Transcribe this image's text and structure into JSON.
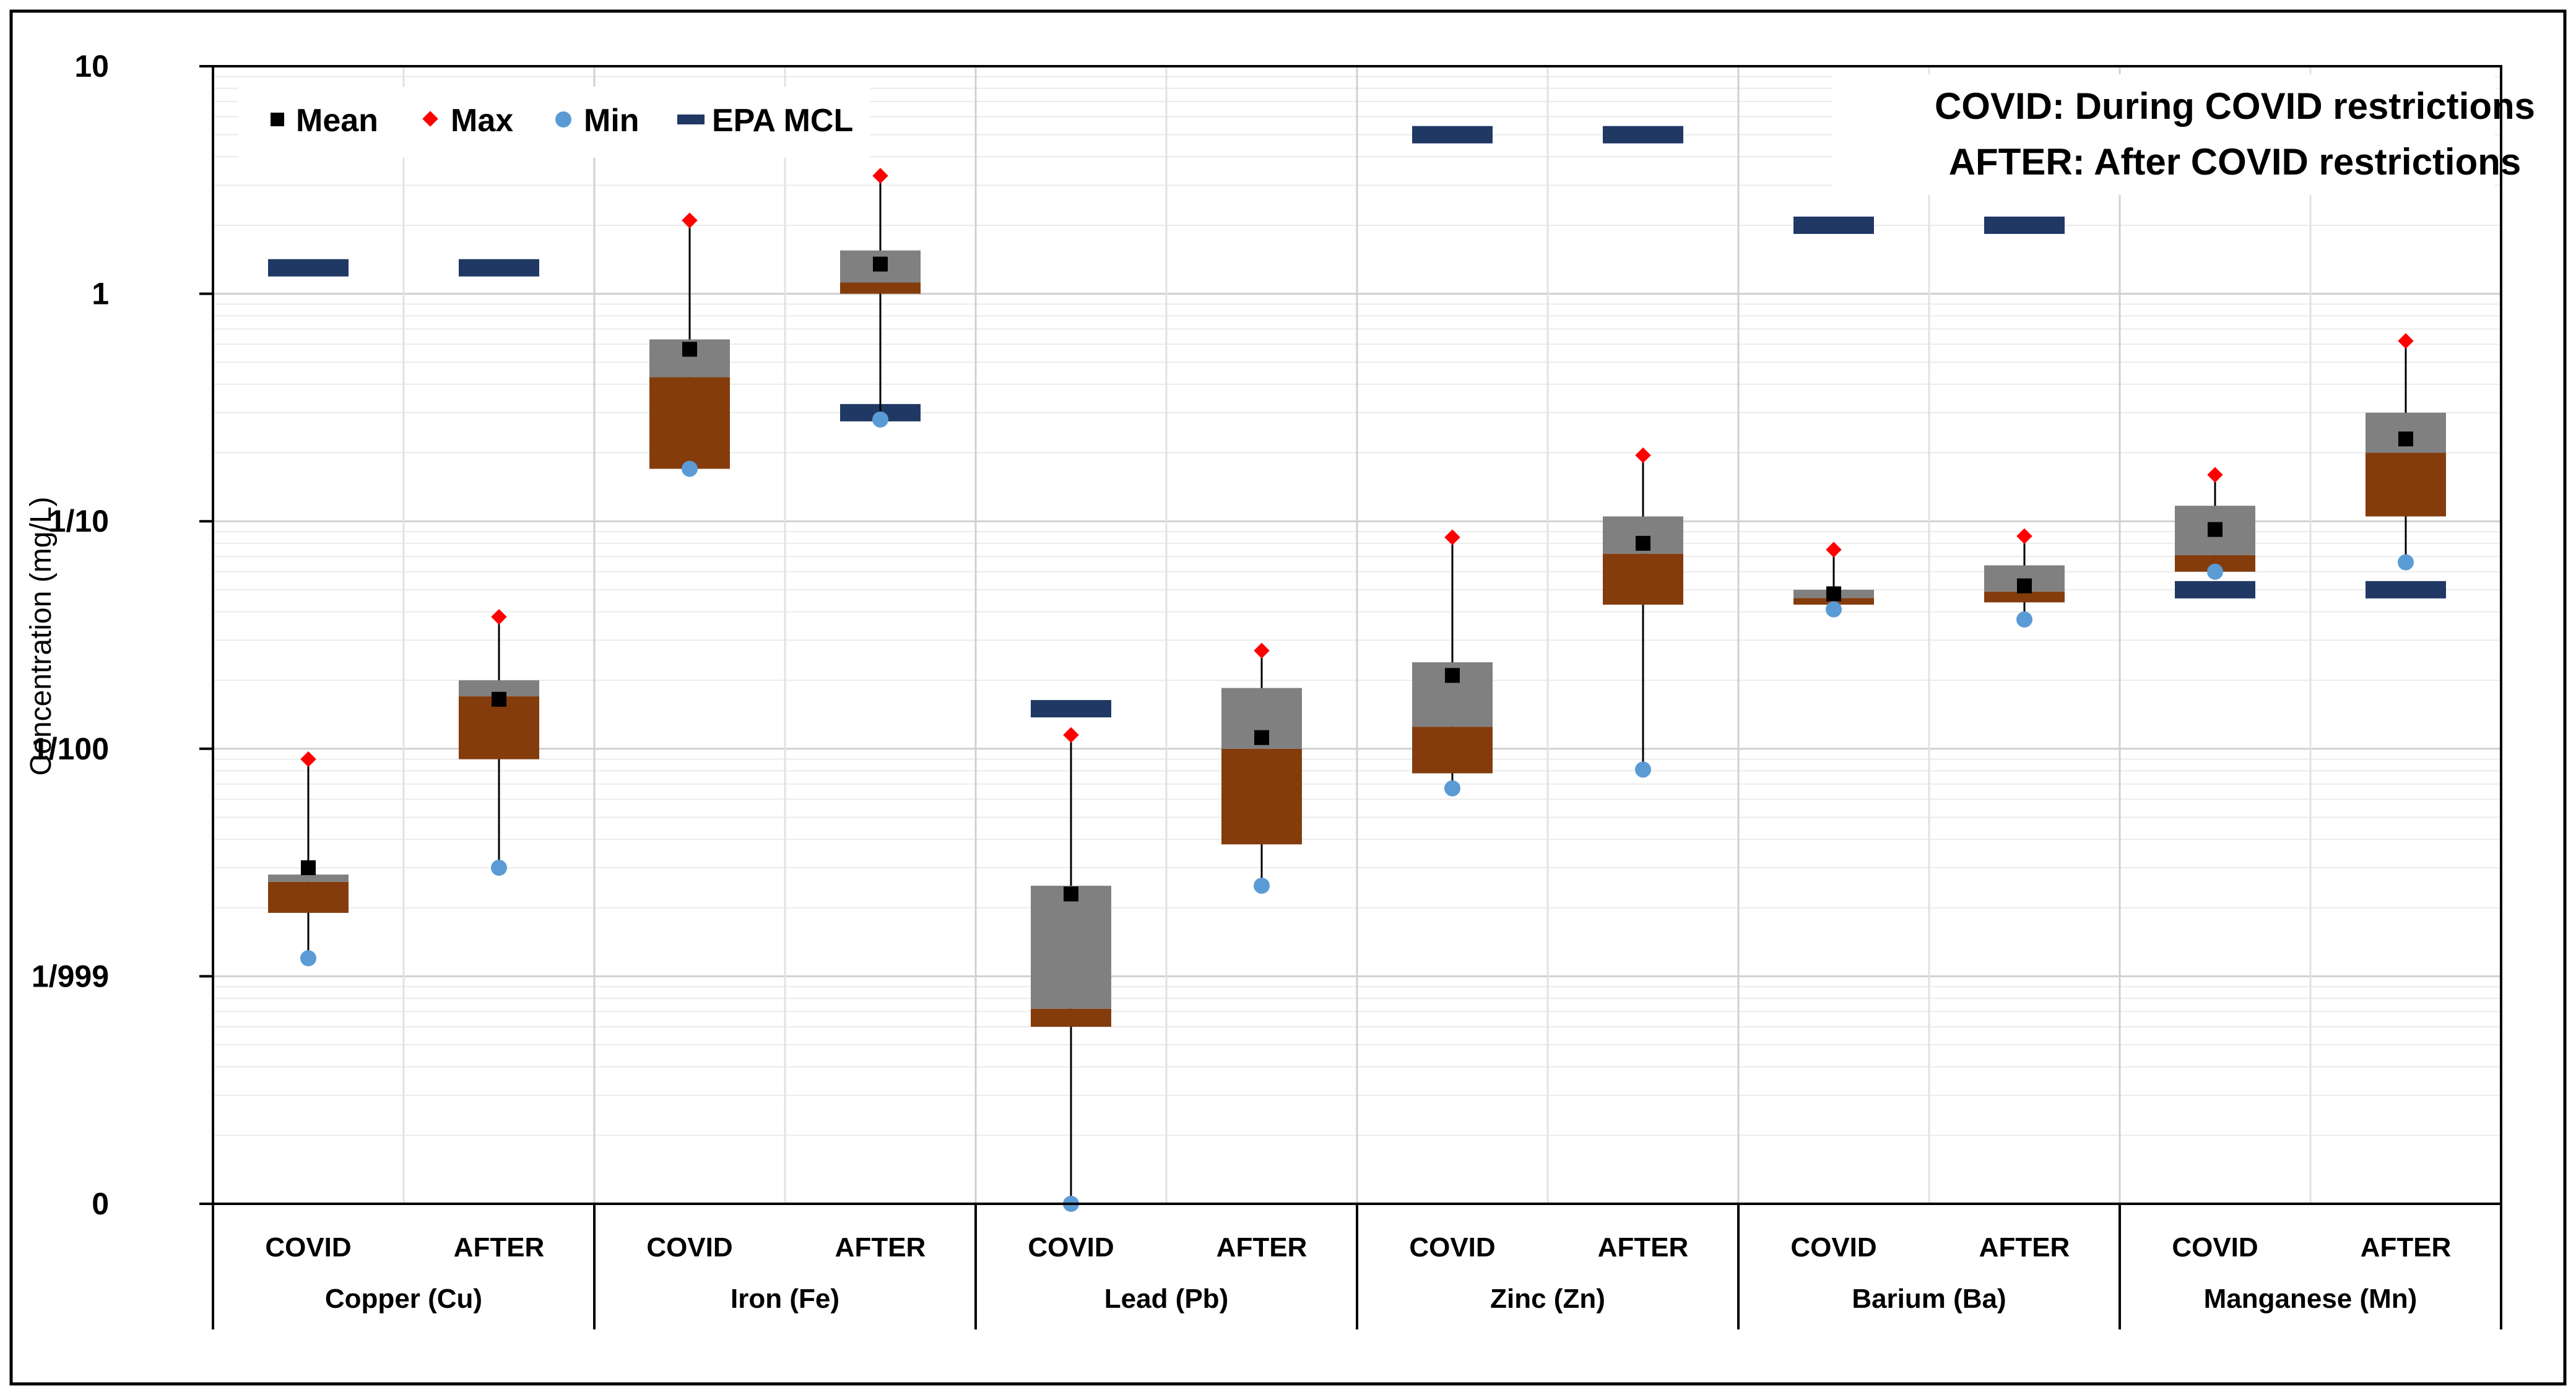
{
  "chart_data": {
    "type": "box",
    "ylabel": "Concentration (mg/L)",
    "yscale": "log",
    "ylim": [
      0.0001,
      10
    ],
    "y_ticks": [
      {
        "value": 10,
        "label": "10"
      },
      {
        "value": 1,
        "label": "1"
      },
      {
        "value": 0.1,
        "label": "1/10"
      },
      {
        "value": 0.01,
        "label": "1/100"
      },
      {
        "value": 0.001,
        "label": "1/999"
      },
      {
        "value": 0.0001,
        "label": "0"
      }
    ],
    "legend": [
      {
        "key": "mean",
        "label": "Mean"
      },
      {
        "key": "max",
        "label": "Max"
      },
      {
        "key": "min",
        "label": "Min"
      },
      {
        "key": "mcl",
        "label": "EPA MCL"
      }
    ],
    "notes": [
      "COVID: During COVID restrictions",
      "AFTER: After COVID restrictions"
    ],
    "colors": {
      "upper_box": "#808080",
      "lower_box": "#843C0C",
      "mean": "#000000",
      "max": "#FF0000",
      "min": "#5B9BD5",
      "mcl": "#203864",
      "grid": "#D9D9D9",
      "whisker": "#000000"
    },
    "groups": [
      {
        "name": "Copper (Cu)",
        "mcl": 1.3,
        "series": [
          {
            "label": "COVID",
            "min": 0.0012,
            "q1": 0.0019,
            "median": 0.0026,
            "q3": 0.0028,
            "mean": 0.003,
            "max": 0.009
          },
          {
            "label": "AFTER",
            "min": 0.003,
            "q1": 0.009,
            "median": 0.017,
            "q3": 0.02,
            "mean": 0.0165,
            "max": 0.038
          }
        ]
      },
      {
        "name": "Iron (Fe)",
        "mcl": 0.3,
        "series": [
          {
            "label": "COVID",
            "min": 0.17,
            "q1": 0.17,
            "median": 0.43,
            "q3": 0.63,
            "mean": 0.57,
            "max": 2.1
          },
          {
            "label": "AFTER",
            "min": 0.28,
            "q1": 1.0,
            "median": 1.12,
            "q3": 1.55,
            "mean": 1.35,
            "max": 3.3
          }
        ]
      },
      {
        "name": "Lead (Pb)",
        "mcl": 0.015,
        "series": [
          {
            "label": "COVID",
            "min": 0.0001,
            "q1": 0.0006,
            "median": 0.00072,
            "q3": 0.0025,
            "mean": 0.0023,
            "max": 0.0115
          },
          {
            "label": "AFTER",
            "min": 0.0025,
            "q1": 0.0038,
            "median": 0.01,
            "q3": 0.0185,
            "mean": 0.0112,
            "max": 0.027
          }
        ]
      },
      {
        "name": "Zinc (Zn)",
        "mcl": 5,
        "series": [
          {
            "label": "COVID",
            "min": 0.0067,
            "q1": 0.0078,
            "median": 0.0125,
            "q3": 0.024,
            "mean": 0.021,
            "max": 0.085
          },
          {
            "label": "AFTER",
            "min": 0.0081,
            "q1": 0.043,
            "median": 0.072,
            "q3": 0.105,
            "mean": 0.08,
            "max": 0.195
          }
        ]
      },
      {
        "name": "Barium (Ba)",
        "mcl": 2,
        "series": [
          {
            "label": "COVID",
            "min": 0.041,
            "q1": 0.043,
            "median": 0.046,
            "q3": 0.05,
            "mean": 0.048,
            "max": 0.075
          },
          {
            "label": "AFTER",
            "min": 0.037,
            "q1": 0.044,
            "median": 0.049,
            "q3": 0.064,
            "mean": 0.052,
            "max": 0.086
          }
        ]
      },
      {
        "name": "Manganese (Mn)",
        "mcl": 0.05,
        "series": [
          {
            "label": "COVID",
            "min": 0.06,
            "q1": 0.06,
            "median": 0.071,
            "q3": 0.117,
            "mean": 0.092,
            "max": 0.16
          },
          {
            "label": "AFTER",
            "min": 0.066,
            "q1": 0.105,
            "median": 0.2,
            "q3": 0.3,
            "mean": 0.23,
            "max": 0.62
          }
        ]
      }
    ]
  }
}
